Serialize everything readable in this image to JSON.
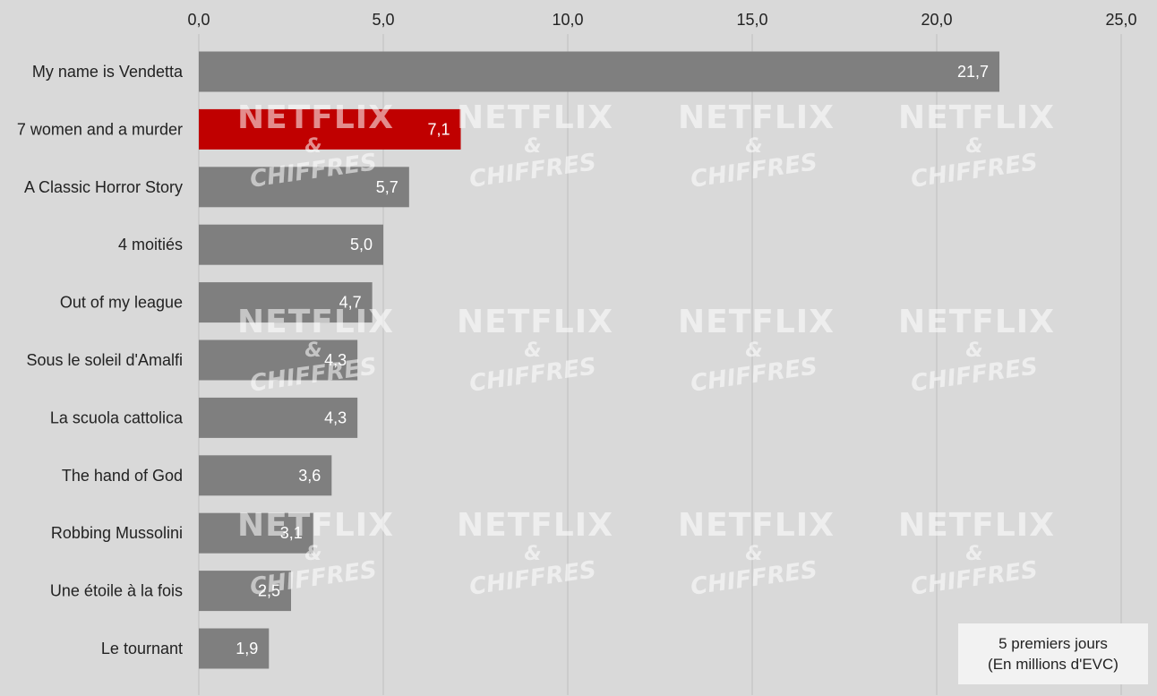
{
  "chart_data": {
    "type": "bar",
    "orientation": "horizontal",
    "categories": [
      "My name is Vendetta",
      "7 women and a murder",
      "A Classic Horror Story",
      "4 moitiés",
      "Out of my league",
      "Sous le soleil d'Amalfi",
      "La scuola cattolica",
      "The hand of God",
      "Robbing Mussolini",
      "Une étoile à la fois",
      "Le tournant"
    ],
    "values": [
      21.7,
      7.1,
      5.7,
      5.0,
      4.7,
      4.3,
      4.3,
      3.6,
      3.1,
      2.5,
      1.9
    ],
    "value_labels": [
      "21,7",
      "7,1",
      "5,7",
      "5,0",
      "4,7",
      "4,3",
      "4,3",
      "3,6",
      "3,1",
      "2,5",
      "1,9"
    ],
    "xlim": [
      0,
      25
    ],
    "x_ticks": [
      0,
      5,
      10,
      15,
      20,
      25
    ],
    "x_tick_labels": [
      "0,0",
      "5,0",
      "10,0",
      "15,0",
      "20,0",
      "25,0"
    ],
    "x_axis_position": "top",
    "grid": true,
    "highlight_index": 1,
    "colors": {
      "background": "#d9d9d9",
      "bar": "#7f7f7f",
      "highlight": "#c00000",
      "gridline": "#bfbfbf",
      "bar_label": "#ffffff",
      "axis_text": "#222222"
    },
    "legend_box": {
      "position": "bottom-right",
      "line1": "5 premiers jours",
      "line2": "(En millions d'EVC)"
    }
  },
  "watermark": {
    "line1": "NETFLIX",
    "line2": "&",
    "line3": "CHIFFRES"
  }
}
